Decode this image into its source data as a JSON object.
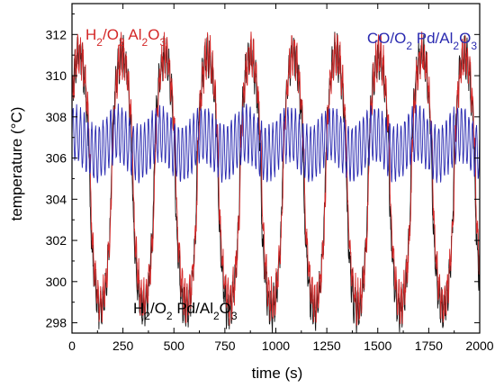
{
  "chart_data": {
    "type": "line",
    "xlabel": "time (s)",
    "ylabel": "temperature (°C)",
    "xlim": [
      0,
      2000
    ],
    "ylim": [
      297.5,
      313.5
    ],
    "x_ticks": [
      0,
      250,
      500,
      750,
      1000,
      1250,
      1500,
      1750,
      2000
    ],
    "y_ticks": [
      298,
      300,
      302,
      304,
      306,
      308,
      310,
      312
    ],
    "grid": false,
    "period_s": 210,
    "series": [
      {
        "name_parts": [
          {
            "t": "H"
          },
          {
            "t": "2",
            "sub": true
          },
          {
            "t": "/O"
          },
          {
            "t": "2",
            "sub": true
          },
          {
            "t": " Al"
          },
          {
            "t": "2",
            "sub": true
          },
          {
            "t": "O"
          },
          {
            "t": "3",
            "sub": true
          }
        ],
        "color": "#d42828",
        "mean": 305.0,
        "amplitude": 6.0,
        "ripple": 0.8,
        "range": [
          298.5,
          312.0
        ],
        "annotation_position": "top-left"
      },
      {
        "name_parts": [
          {
            "t": "H"
          },
          {
            "t": "2",
            "sub": true
          },
          {
            "t": "/O"
          },
          {
            "t": "2",
            "sub": true
          },
          {
            "t": " Pd/Al"
          },
          {
            "t": "2",
            "sub": true
          },
          {
            "t": "O"
          },
          {
            "t": "3",
            "sub": true
          }
        ],
        "color": "#111111",
        "mean": 304.8,
        "amplitude": 6.2,
        "ripple": 0.8,
        "range": [
          298.2,
          311.5
        ],
        "annotation_position": "bottom-center"
      },
      {
        "name_parts": [
          {
            "t": "CO/O"
          },
          {
            "t": "2",
            "sub": true
          },
          {
            "t": " Pd/Al"
          },
          {
            "t": "2",
            "sub": true
          },
          {
            "t": "O"
          },
          {
            "t": "3",
            "sub": true
          }
        ],
        "color": "#2a2ab0",
        "mean": 306.7,
        "amplitude": 0.5,
        "ripple": 1.3,
        "range": [
          305.0,
          308.5
        ],
        "annotation_position": "top-right"
      }
    ]
  }
}
